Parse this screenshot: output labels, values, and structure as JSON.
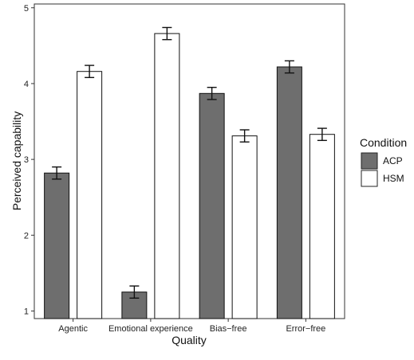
{
  "chart_data": {
    "type": "bar",
    "title": "",
    "xlabel": "Quality",
    "ylabel": "Perceived capability",
    "ylim": [
      0.9,
      5.05
    ],
    "yticks": [
      1,
      2,
      3,
      4,
      5
    ],
    "categories": [
      "Agentic",
      "Emotional experience",
      "Bias−free",
      "Error−free"
    ],
    "series": [
      {
        "name": "ACP",
        "color": "#6e6e6e",
        "values": [
          2.82,
          1.25,
          3.87,
          4.22
        ],
        "error": [
          0.08,
          0.08,
          0.08,
          0.08
        ]
      },
      {
        "name": "HSM",
        "color": "#ffffff",
        "values": [
          4.16,
          4.66,
          3.31,
          3.33
        ],
        "error": [
          0.08,
          0.08,
          0.08,
          0.08
        ]
      }
    ],
    "legend": {
      "title": "Condition",
      "position": "right"
    },
    "grid": false
  }
}
